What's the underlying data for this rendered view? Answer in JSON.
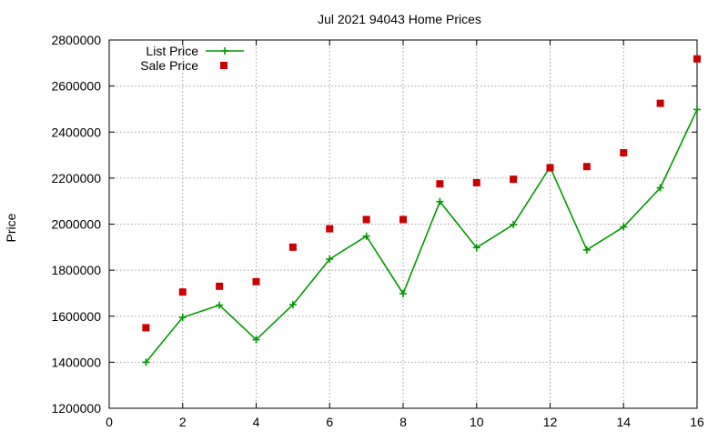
{
  "chart_data": {
    "type": "line",
    "title": "Jul 2021 94043 Home Prices",
    "xlabel": "",
    "ylabel": "Price",
    "xlim": [
      0,
      16
    ],
    "ylim": [
      1200000,
      2800000
    ],
    "xticks": [
      0,
      2,
      4,
      6,
      8,
      10,
      12,
      14,
      16
    ],
    "yticks": [
      1200000,
      1400000,
      1600000,
      1800000,
      2000000,
      2200000,
      2400000,
      2600000,
      2800000
    ],
    "grid": true,
    "legend_position": "top-left",
    "series": [
      {
        "name": "List Price",
        "kind": "line-points",
        "marker": "plus",
        "color": "#009900",
        "x": [
          1,
          2,
          3,
          4,
          5,
          6,
          7,
          8,
          9,
          10,
          11,
          12,
          13,
          14,
          15,
          16
        ],
        "values": [
          1400000,
          1595000,
          1648000,
          1498000,
          1650000,
          1848000,
          1948000,
          1698000,
          2098000,
          1898000,
          1998000,
          2248000,
          1888000,
          1988000,
          2158000,
          2498000
        ]
      },
      {
        "name": "Sale Price",
        "kind": "points",
        "marker": "square",
        "color": "#cc0000",
        "x": [
          1,
          2,
          3,
          4,
          5,
          6,
          7,
          8,
          9,
          10,
          11,
          12,
          13,
          14,
          15,
          16
        ],
        "values": [
          1550000,
          1705000,
          1730000,
          1750000,
          1900000,
          1980000,
          2020000,
          2020000,
          2175000,
          2180000,
          2195000,
          2245000,
          2250000,
          2310000,
          2525000,
          2718000
        ]
      }
    ]
  }
}
